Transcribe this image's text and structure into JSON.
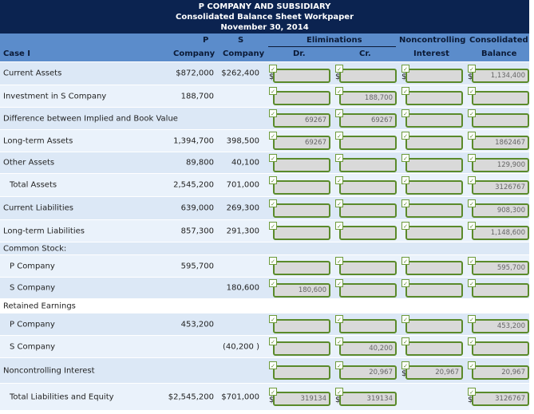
{
  "title": {
    "line1": "P COMPANY AND SUBSIDIARY",
    "line2": "Consolidated Balance Sheet Workpaper",
    "line3": "November 30, 2014"
  },
  "header": {
    "case": "Case I",
    "p_top": "P",
    "p_bottom": "Company",
    "s_top": "S",
    "s_bottom": "Company",
    "elim": "Eliminations",
    "dr": "Dr.",
    "cr": "Cr.",
    "nci_top": "Noncontrolling",
    "nci_bottom": "Interest",
    "cons_top": "Consolidated",
    "cons_bottom": "Balance"
  },
  "currency_symbol": "$",
  "check_icon": "✓",
  "rows": [
    {
      "label": "Current Assets",
      "p": "$872,000",
      "s": "$262,400",
      "dr": "",
      "cr": "",
      "nci": "",
      "cons": "1,134,400",
      "inputs": true,
      "dollars": [
        "dr",
        "cr",
        "nci",
        "cons"
      ]
    },
    {
      "label": "Investment in S Company",
      "p": "188,700",
      "s": "",
      "dr": "",
      "cr": "188,700",
      "nci": "",
      "cons": "",
      "inputs": true
    },
    {
      "label": "Difference between Implied and Book Value",
      "p": "",
      "s": "",
      "dr": "69267",
      "cr": "69267",
      "nci": "",
      "cons": "",
      "inputs": true
    },
    {
      "label": "Long-term Assets",
      "p": "1,394,700",
      "s": "398,500",
      "dr": "69267",
      "cr": "",
      "nci": "",
      "cons": "1862467",
      "inputs": true
    },
    {
      "label": "Other Assets",
      "p": "89,800",
      "s": "40,100",
      "dr": "",
      "cr": "",
      "nci": "",
      "cons": "129,900",
      "inputs": true
    },
    {
      "label": "Total Assets",
      "p": "2,545,200",
      "s": "701,000",
      "dr": "",
      "cr": "",
      "nci": "",
      "cons": "3126767",
      "inputs": true,
      "indent": true
    },
    {
      "label": "Current Liabilities",
      "p": "639,000",
      "s": "269,300",
      "dr": "",
      "cr": "",
      "nci": "",
      "cons": "908,300",
      "inputs": true
    },
    {
      "label": "Long-term Liabilities",
      "p": "857,300",
      "s": "291,300",
      "dr": "",
      "cr": "",
      "nci": "",
      "cons": "1,148,600",
      "inputs": true
    },
    {
      "label": "Common Stock:",
      "inputs": false
    },
    {
      "label": "P Company",
      "p": "595,700",
      "s": "",
      "dr": "",
      "cr": "",
      "nci": "",
      "cons": "595,700",
      "inputs": true,
      "indent": true
    },
    {
      "label": "S Company",
      "p": "",
      "s": "180,600",
      "dr": "180,600",
      "cr": "",
      "nci": "",
      "cons": "",
      "inputs": true,
      "indent": true
    },
    {
      "label": "Retained Earnings",
      "inputs": false
    },
    {
      "label": "P Company",
      "p": "453,200",
      "s": "",
      "dr": "",
      "cr": "",
      "nci": "",
      "cons": "453,200",
      "inputs": true,
      "indent": true
    },
    {
      "label": "S Company",
      "p": "",
      "s": "(40,200 )",
      "dr": "",
      "cr": "40,200",
      "nci": "",
      "cons": "",
      "inputs": true,
      "indent": true
    },
    {
      "label": "Noncontrolling Interest",
      "p": "",
      "s": "",
      "dr": "",
      "cr": "20,967",
      "nci": "20,967",
      "cons": "20,967",
      "inputs": true,
      "dollars": [
        "nci"
      ]
    },
    {
      "label": "Total Liabilities and Equity",
      "p": "$2,545,200",
      "s": "$701,000",
      "dr": "319134",
      "cr": "319134",
      "cons": "3126767",
      "inputs": true,
      "no_nci": true,
      "indent": true,
      "dollars": [
        "dr",
        "cr",
        "cons"
      ]
    }
  ]
}
